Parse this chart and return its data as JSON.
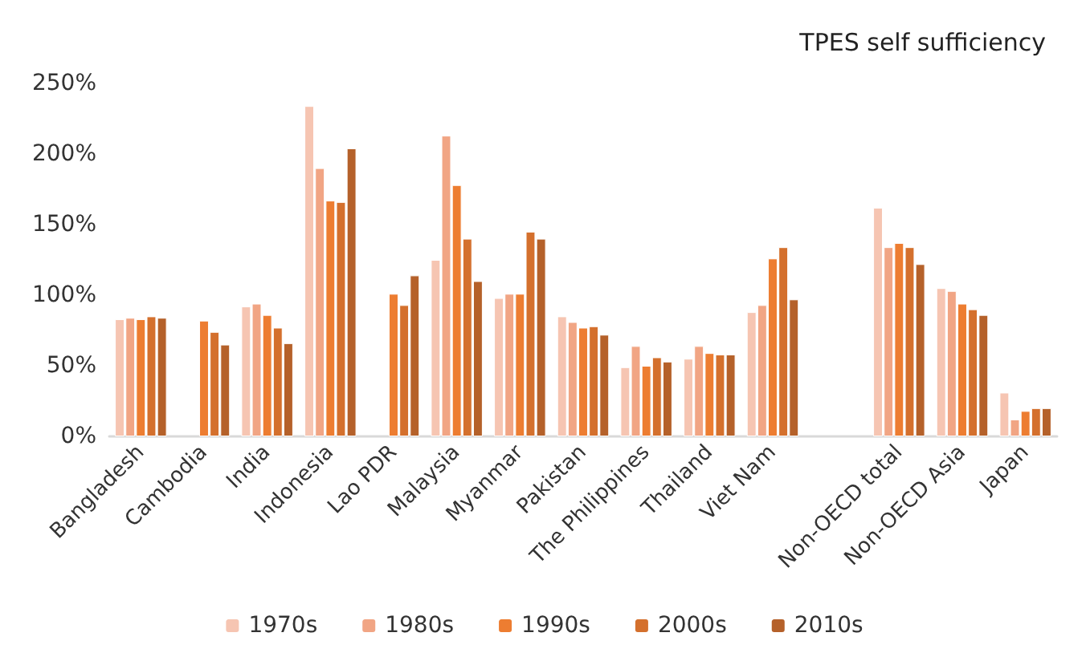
{
  "chart_data": {
    "type": "bar",
    "title": "TPES self sufficiency",
    "categories": [
      "Bangladesh",
      "Cambodia",
      "India",
      "Indonesia",
      "Lao PDR",
      "Malaysia",
      "Myanmar",
      "Pakistan",
      "The Philippines",
      "Thailand",
      "Viet Nam",
      null,
      "Non-OECD total",
      "Non-OECD Asia",
      "Japan"
    ],
    "series": [
      {
        "name": "1970s",
        "color": "#f6c5b2",
        "values": [
          83,
          null,
          92,
          234,
          null,
          125,
          98,
          85,
          49,
          55,
          88,
          null,
          162,
          105,
          31
        ]
      },
      {
        "name": "1980s",
        "color": "#f1a584",
        "values": [
          84,
          null,
          94,
          190,
          null,
          213,
          101,
          81,
          64,
          64,
          93,
          null,
          134,
          103,
          12
        ]
      },
      {
        "name": "1990s",
        "color": "#ed7d31",
        "values": [
          83,
          82,
          86,
          167,
          101,
          178,
          101,
          77,
          50,
          59,
          126,
          null,
          137,
          94,
          18
        ]
      },
      {
        "name": "2000s",
        "color": "#d4702d",
        "values": [
          85,
          74,
          77,
          166,
          93,
          140,
          145,
          78,
          56,
          58,
          134,
          null,
          134,
          90,
          20
        ]
      },
      {
        "name": "2010s",
        "color": "#b5612a",
        "values": [
          84,
          65,
          66,
          204,
          114,
          110,
          140,
          72,
          53,
          58,
          97,
          null,
          122,
          86,
          20
        ]
      }
    ],
    "ylim": [
      0,
      250
    ],
    "yticks": [
      {
        "value": 0,
        "label": "0%"
      },
      {
        "value": 50,
        "label": "50%"
      },
      {
        "value": 100,
        "label": "100%"
      },
      {
        "value": 150,
        "label": "150%"
      },
      {
        "value": 200,
        "label": "200%"
      },
      {
        "value": 250,
        "label": "250%"
      }
    ],
    "grid": false,
    "legend": "bottom"
  }
}
